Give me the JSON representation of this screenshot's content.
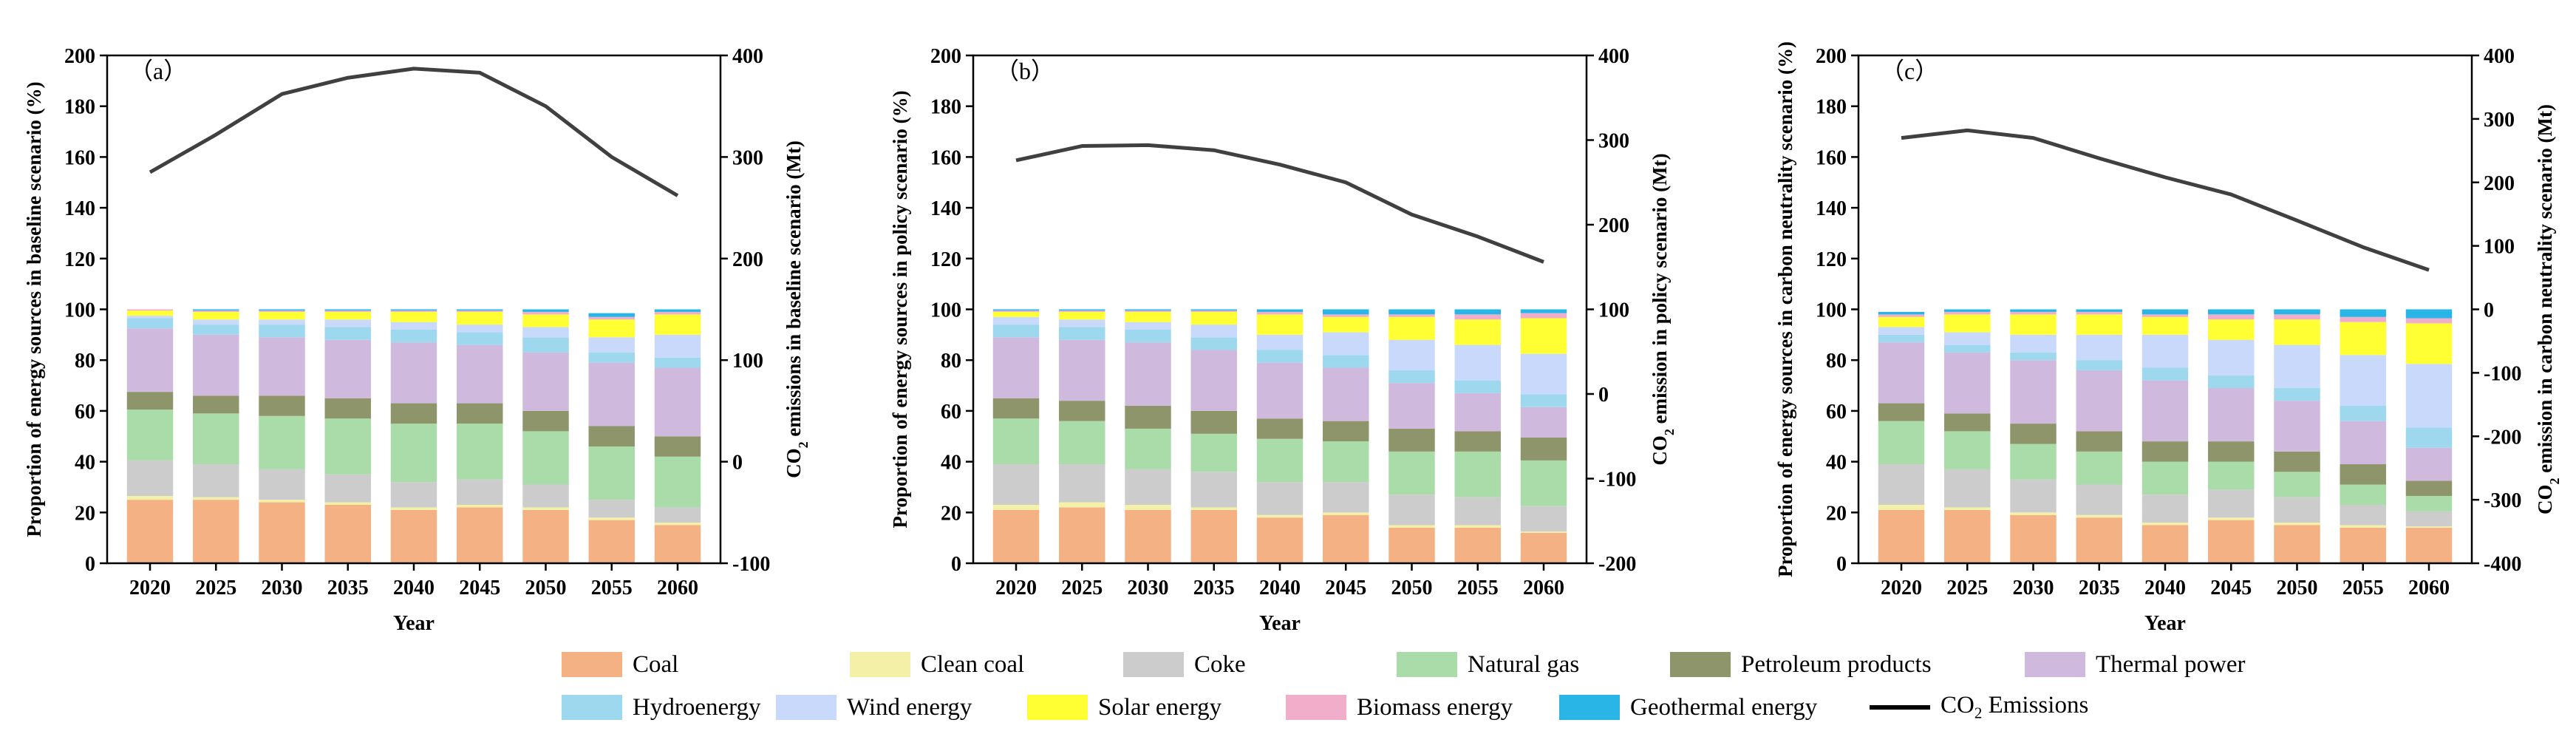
{
  "chart_data": [
    {
      "type": "bar",
      "stacked": true,
      "panel_label": "（a）",
      "categories": [
        "2020",
        "2025",
        "2030",
        "2035",
        "2040",
        "2045",
        "2050",
        "2055",
        "2060"
      ],
      "xlabel": "Year",
      "ylabel": "Proportion of energy sources in baseline scenario (%)",
      "ylim": [
        0,
        200
      ],
      "yticks": [
        "0",
        "20",
        "40",
        "60",
        "80",
        "100",
        "120",
        "140",
        "160",
        "180",
        "200"
      ],
      "y2label_pre": "CO",
      "y2label_sub": "2",
      "y2label_post": " emissions in baseline scenario (Mt)",
      "y2lim": [
        -100,
        400
      ],
      "y2ticks": [
        "-100",
        "0",
        "100",
        "200",
        "300",
        "400"
      ],
      "series": [
        {
          "name": "Coal",
          "values": [
            25,
            25,
            24,
            23,
            21,
            22,
            21,
            17,
            15
          ]
        },
        {
          "name": "Clean coal",
          "values": [
            1.5,
            1,
            1,
            1,
            1,
            1,
            1,
            1,
            1
          ]
        },
        {
          "name": "Coke",
          "values": [
            14,
            13,
            12,
            11,
            10,
            10,
            9,
            7,
            6
          ]
        },
        {
          "name": "Natural gas",
          "values": [
            20,
            20,
            21,
            22,
            23,
            22,
            21,
            21,
            20
          ]
        },
        {
          "name": "Petroleum products",
          "values": [
            7,
            7,
            8,
            8,
            8,
            8,
            8,
            8,
            8
          ]
        },
        {
          "name": "Thermal power",
          "values": [
            25,
            24,
            23,
            23,
            24,
            23,
            23,
            25,
            27
          ]
        },
        {
          "name": "Hydroenergy",
          "values": [
            4,
            4,
            5,
            5,
            5,
            5,
            6,
            4,
            4
          ]
        },
        {
          "name": "Wind energy",
          "values": [
            1,
            2,
            2,
            3,
            3,
            3,
            4,
            6,
            9
          ]
        },
        {
          "name": "Solar energy",
          "values": [
            2,
            3,
            3,
            3,
            4,
            5,
            5,
            7,
            8
          ]
        },
        {
          "name": "Biomass energy",
          "values": [
            0.5,
            0.5,
            0.5,
            0.5,
            0.5,
            0.5,
            1,
            1,
            1
          ]
        },
        {
          "name": "Geothermal energy",
          "values": [
            0,
            0.5,
            0.5,
            0.5,
            0.5,
            0.5,
            1,
            1.5,
            1
          ]
        }
      ],
      "line_series": {
        "name": "CO2 Emissions",
        "axis": "right",
        "values": [
          285,
          322,
          362,
          378,
          387,
          383,
          350,
          300,
          262
        ]
      }
    },
    {
      "type": "bar",
      "stacked": true,
      "panel_label": "（b）",
      "categories": [
        "2020",
        "2025",
        "2030",
        "2035",
        "2040",
        "2045",
        "2050",
        "2055",
        "2060"
      ],
      "xlabel": "Year",
      "ylabel": "Proportion of energy sources in policy scenario (%)",
      "ylim": [
        0,
        200
      ],
      "yticks": [
        "0",
        "20",
        "40",
        "60",
        "80",
        "100",
        "120",
        "140",
        "160",
        "180",
        "200"
      ],
      "y2label_pre": "CO",
      "y2label_sub": "2",
      "y2label_post": " emission in policy scenario (Mt)",
      "y2lim": [
        -200,
        400
      ],
      "y2ticks": [
        "-200",
        "-100",
        "0",
        "100",
        "200",
        "300",
        "400"
      ],
      "series": [
        {
          "name": "Coal",
          "values": [
            21,
            22,
            21,
            21,
            18,
            19,
            14,
            14,
            12
          ]
        },
        {
          "name": "Clean coal",
          "values": [
            2,
            2,
            2,
            1,
            1,
            1,
            1,
            1,
            0.5
          ]
        },
        {
          "name": "Coke",
          "values": [
            16,
            15,
            14,
            14,
            13,
            12,
            12,
            11,
            10
          ]
        },
        {
          "name": "Natural gas",
          "values": [
            18,
            17,
            16,
            15,
            17,
            16,
            17,
            18,
            18
          ]
        },
        {
          "name": "Petroleum products",
          "values": [
            8,
            8,
            9,
            9,
            8,
            8,
            9,
            8,
            9
          ]
        },
        {
          "name": "Thermal power",
          "values": [
            24,
            24,
            25,
            24,
            22,
            21,
            18,
            15,
            12
          ]
        },
        {
          "name": "Hydroenergy",
          "values": [
            5,
            5,
            5,
            5,
            5,
            5,
            5,
            5,
            5
          ]
        },
        {
          "name": "Wind energy",
          "values": [
            3,
            3,
            3,
            5,
            6,
            9,
            12,
            14,
            16
          ]
        },
        {
          "name": "Solar energy",
          "values": [
            2,
            3,
            4,
            5,
            8,
            6,
            9,
            10,
            14
          ]
        },
        {
          "name": "Biomass energy",
          "values": [
            0.5,
            0.5,
            0.5,
            0.5,
            1,
            1,
            1,
            2,
            2
          ]
        },
        {
          "name": "Geothermal energy",
          "values": [
            0.5,
            0.5,
            0.5,
            0.5,
            1,
            2,
            2,
            2,
            1.5
          ]
        }
      ],
      "line_series": {
        "name": "CO2 Emissions",
        "axis": "right",
        "values": [
          276,
          293,
          294,
          288,
          271,
          250,
          212,
          186,
          156
        ]
      }
    },
    {
      "type": "bar",
      "stacked": true,
      "panel_label": "（c）",
      "categories": [
        "2020",
        "2025",
        "2030",
        "2035",
        "2040",
        "2045",
        "2050",
        "2055",
        "2060"
      ],
      "xlabel": "Year",
      "ylabel": "Proportion of energy sources in carbon neutrality scenario (%)",
      "ylim": [
        0,
        200
      ],
      "yticks": [
        "0",
        "20",
        "40",
        "60",
        "80",
        "100",
        "120",
        "140",
        "160",
        "180",
        "200"
      ],
      "y2label_pre": "CO",
      "y2label_sub": "2",
      "y2label_post": " emission in carbon neutrality scenario (Mt)",
      "y2lim": [
        -400,
        400
      ],
      "y2ticks": [
        "-400",
        "-300",
        "-200",
        "-100",
        "0",
        "100",
        "200",
        "300",
        "400"
      ],
      "series": [
        {
          "name": "Coal",
          "values": [
            21,
            21,
            19,
            18,
            15,
            17,
            15,
            14,
            14
          ]
        },
        {
          "name": "Clean coal",
          "values": [
            2,
            1,
            1,
            1,
            1,
            1,
            1,
            1,
            0.5
          ]
        },
        {
          "name": "Coke",
          "values": [
            16,
            15,
            13,
            12,
            11,
            11,
            10,
            8,
            6
          ]
        },
        {
          "name": "Natural gas",
          "values": [
            17,
            15,
            14,
            13,
            13,
            11,
            10,
            8,
            6
          ]
        },
        {
          "name": "Petroleum products",
          "values": [
            7,
            7,
            8,
            8,
            8,
            8,
            8,
            8,
            6
          ]
        },
        {
          "name": "Thermal power",
          "values": [
            24,
            24,
            25,
            24,
            24,
            21,
            20,
            17,
            13
          ]
        },
        {
          "name": "Hydroenergy",
          "values": [
            3,
            3,
            3,
            4,
            5,
            5,
            5,
            6,
            8
          ]
        },
        {
          "name": "Wind energy",
          "values": [
            3,
            5,
            7,
            10,
            13,
            14,
            17,
            20,
            25
          ]
        },
        {
          "name": "Solar energy",
          "values": [
            4,
            7,
            8,
            8,
            7,
            8,
            10,
            13,
            16
          ]
        },
        {
          "name": "Biomass energy",
          "values": [
            1,
            1,
            1,
            1,
            1,
            2,
            2,
            2,
            2
          ]
        },
        {
          "name": "Geothermal energy",
          "values": [
            1,
            1,
            1,
            1,
            2,
            2,
            2,
            3,
            3.5
          ]
        }
      ],
      "line_series": {
        "name": "CO2 Emissions",
        "axis": "right",
        "values": [
          270,
          282,
          270,
          238,
          208,
          181,
          140,
          98,
          62
        ]
      }
    }
  ],
  "colors": {
    "Coal": "#f4b183",
    "Clean coal": "#f5f0a8",
    "Coke": "#cccccc",
    "Natural gas": "#a9dca8",
    "Petroleum products": "#8e956a",
    "Thermal power": "#cfb9dd",
    "Hydroenergy": "#9dd8ef",
    "Wind energy": "#c9d9fb",
    "Solar energy": "#ffff33",
    "Biomass energy": "#f1aecb",
    "Geothermal energy": "#29b6e6",
    "CO2 Emissions": "#404040"
  },
  "legend": {
    "row1": [
      "Coal",
      "Clean coal",
      "Coke",
      "Natural gas",
      "Petroleum products",
      "Thermal power"
    ],
    "row2": [
      "Hydroenergy",
      "Wind energy",
      "Solar energy",
      "Biomass energy",
      "Geothermal energy"
    ],
    "co2_label_pre": "CO",
    "co2_label_sub": "2",
    "co2_label_post": " Emissions"
  }
}
